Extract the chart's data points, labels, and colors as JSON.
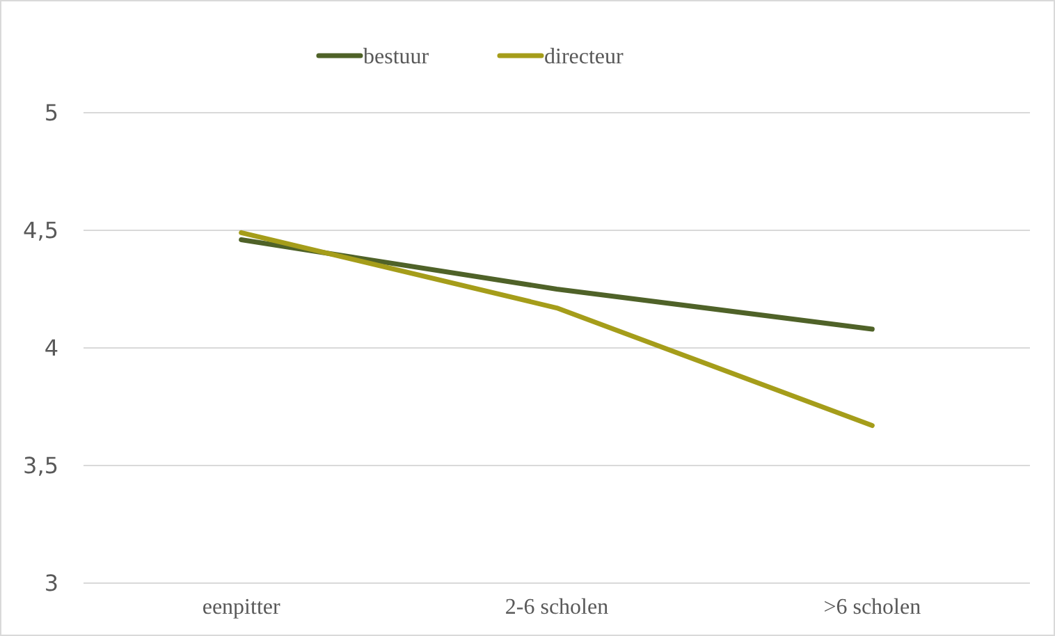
{
  "chart_data": {
    "type": "line",
    "categories": [
      "eenpitter",
      "2-6 scholen",
      ">6 scholen"
    ],
    "series": [
      {
        "name": "bestuur",
        "color": "#4f6228",
        "values": [
          4.46,
          4.25,
          4.08
        ]
      },
      {
        "name": "directeur",
        "color": "#a59d1a",
        "values": [
          4.49,
          4.17,
          3.67
        ]
      }
    ],
    "ylim": [
      3,
      5
    ],
    "yticks": [
      {
        "value": 3,
        "label": "3"
      },
      {
        "value": 3.5,
        "label": "3,5"
      },
      {
        "value": 4,
        "label": "4"
      },
      {
        "value": 4.5,
        "label": "4,5"
      },
      {
        "value": 5,
        "label": "5"
      }
    ],
    "grid": "y",
    "legend": "top",
    "marker": "none",
    "line_style": "solid"
  }
}
